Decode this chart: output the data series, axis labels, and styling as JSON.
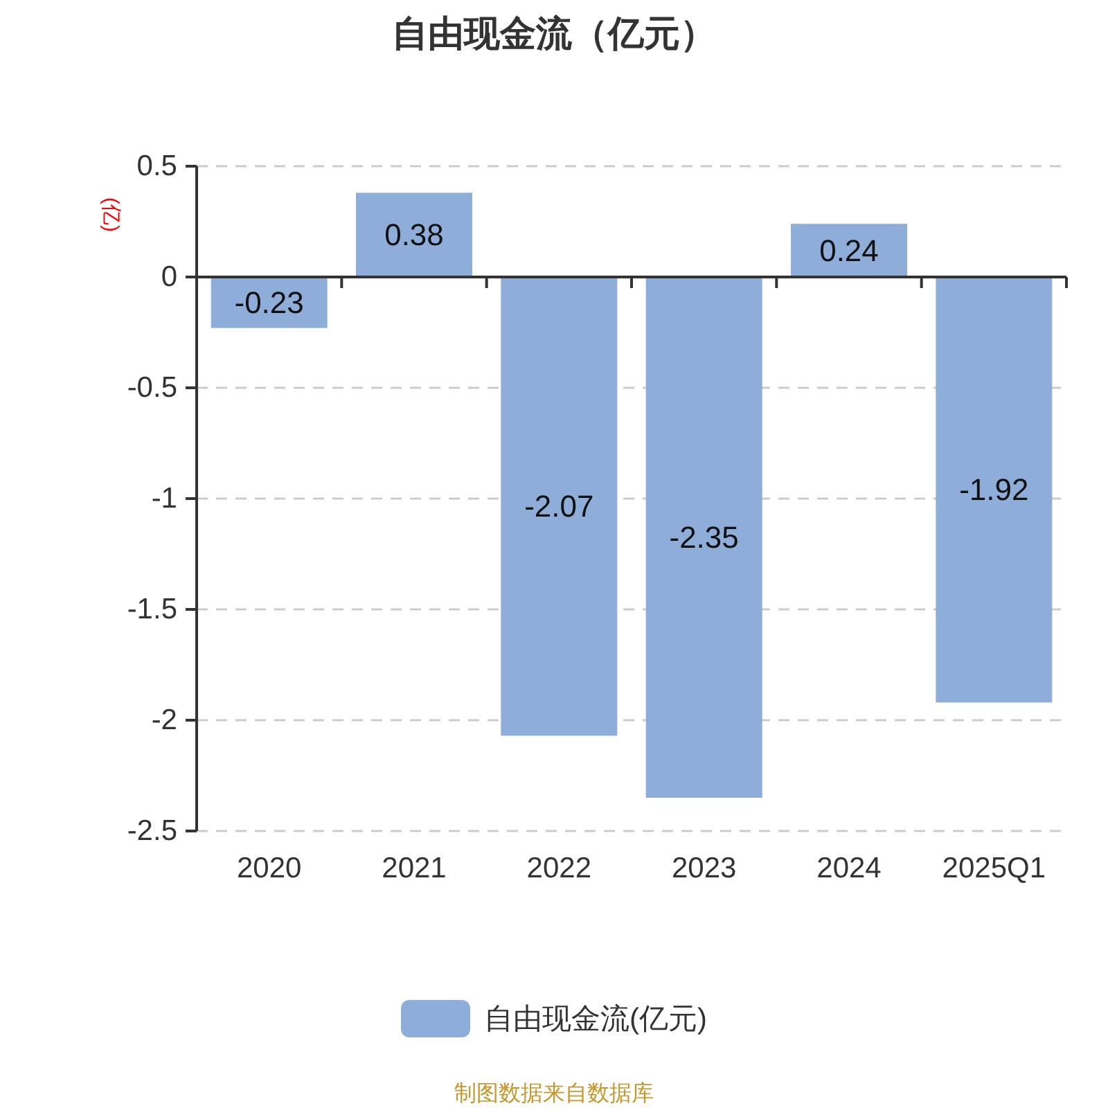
{
  "chart_data": {
    "type": "bar",
    "title": "自由现金流（亿元）",
    "ylabel": "(亿)",
    "categories": [
      "2020",
      "2021",
      "2022",
      "2023",
      "2024",
      "2025Q1"
    ],
    "series": [
      {
        "name": "自由现金流(亿元)",
        "color": "#8eadd9",
        "values": [
          -0.23,
          0.38,
          -2.07,
          -2.35,
          0.24,
          -1.92
        ]
      }
    ],
    "ylim": [
      -2.5,
      0.5
    ],
    "yticks": [
      0.5,
      0,
      -0.5,
      -1,
      -1.5,
      -2,
      -2.5
    ],
    "grid": "y",
    "legend": "bottom",
    "data_labels": true,
    "annotations": [
      "制图数据来自数据库"
    ]
  }
}
